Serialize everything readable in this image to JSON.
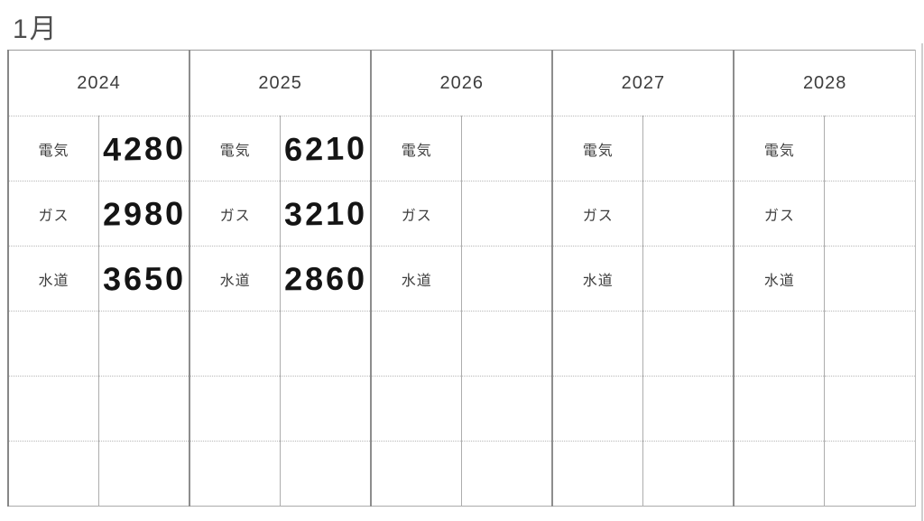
{
  "page": {
    "title": "1月"
  },
  "colors": {
    "title": "#4f4f4f",
    "text": "#3d3d3d",
    "handwriting": "#141414",
    "grid-outer": "#9b9b9b",
    "grid-group": "#8d8d8d",
    "grid-inner": "#adadad",
    "grid-row": "#b8b8b8"
  },
  "table": {
    "row_labels": [
      "電気",
      "ガス",
      "水道"
    ],
    "years": [
      {
        "label": "2024",
        "values": [
          "4280",
          "2980",
          "3650"
        ]
      },
      {
        "label": "2025",
        "values": [
          "6210",
          "3210",
          "2860"
        ]
      },
      {
        "label": "2026",
        "values": [
          "",
          "",
          ""
        ]
      },
      {
        "label": "2027",
        "values": [
          "",
          "",
          ""
        ]
      },
      {
        "label": "2028",
        "values": [
          "",
          "",
          ""
        ]
      }
    ],
    "empty_row_count": 3
  }
}
